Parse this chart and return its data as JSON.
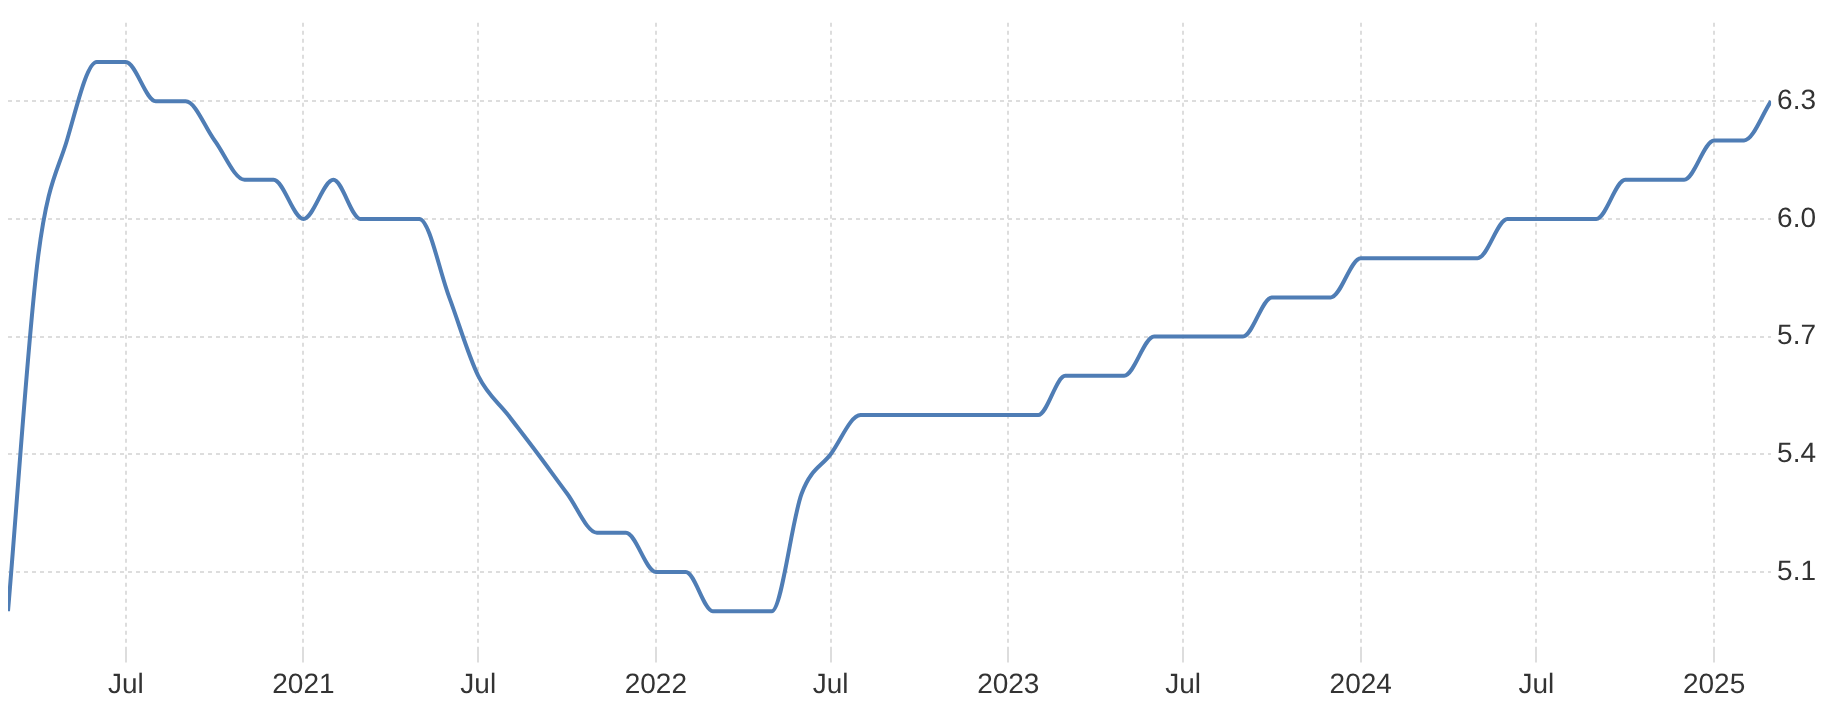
{
  "chart_data": {
    "type": "line",
    "x": [
      "2020-03",
      "2020-04",
      "2020-05",
      "2020-06",
      "2020-07",
      "2020-08",
      "2020-09",
      "2020-10",
      "2020-11",
      "2020-12",
      "2021-01",
      "2021-02",
      "2021-03",
      "2021-04",
      "2021-05",
      "2021-06",
      "2021-07",
      "2021-08",
      "2021-09",
      "2021-10",
      "2021-11",
      "2021-12",
      "2022-01",
      "2022-02",
      "2022-03",
      "2022-04",
      "2022-05",
      "2022-06",
      "2022-07",
      "2022-08",
      "2022-09",
      "2022-10",
      "2022-11",
      "2022-12",
      "2023-01",
      "2023-02",
      "2023-03",
      "2023-04",
      "2023-05",
      "2023-06",
      "2023-07",
      "2023-08",
      "2023-09",
      "2023-10",
      "2023-11",
      "2023-12",
      "2024-01",
      "2024-02",
      "2024-03",
      "2024-04",
      "2024-05",
      "2024-06",
      "2024-07",
      "2024-08",
      "2024-09",
      "2024-10",
      "2024-11",
      "2024-12",
      "2025-01",
      "2025-02",
      "2025-03"
    ],
    "series": [
      {
        "color": "#4f7db5",
        "values": [
          5.0,
          5.9,
          6.2,
          6.4,
          6.4,
          6.3,
          6.3,
          6.2,
          6.1,
          6.1,
          6.0,
          6.1,
          6.0,
          6.0,
          6.0,
          5.8,
          5.6,
          5.5,
          5.4,
          5.3,
          5.2,
          5.2,
          5.1,
          5.1,
          5.0,
          5.0,
          5.0,
          5.3,
          5.4,
          5.5,
          5.5,
          5.5,
          5.5,
          5.5,
          5.5,
          5.5,
          5.6,
          5.6,
          5.6,
          5.7,
          5.7,
          5.7,
          5.7,
          5.8,
          5.8,
          5.8,
          5.9,
          5.9,
          5.9,
          5.9,
          5.9,
          6.0,
          6.0,
          6.0,
          6.0,
          6.1,
          6.1,
          6.1,
          6.2,
          6.2,
          6.3
        ]
      }
    ],
    "xlim": [
      "2020-03",
      "2025-03"
    ],
    "xticks": [
      {
        "value": "2020-07",
        "label": "Jul"
      },
      {
        "value": "2021-01",
        "label": "2021"
      },
      {
        "value": "2021-07",
        "label": "Jul"
      },
      {
        "value": "2022-01",
        "label": "2022"
      },
      {
        "value": "2022-07",
        "label": "Jul"
      },
      {
        "value": "2023-01",
        "label": "2023"
      },
      {
        "value": "2023-07",
        "label": "Jul"
      },
      {
        "value": "2024-01",
        "label": "2024"
      },
      {
        "value": "2024-07",
        "label": "Jul"
      },
      {
        "value": "2025-01",
        "label": "2025"
      }
    ],
    "ylim": [
      4.9,
      6.5
    ],
    "yticks": [
      {
        "value": 5.1,
        "label": "5.1"
      },
      {
        "value": 5.4,
        "label": "5.4"
      },
      {
        "value": 5.7,
        "label": "5.7"
      },
      {
        "value": 6.0,
        "label": "6.0"
      },
      {
        "value": 6.3,
        "label": "6.3"
      }
    ],
    "grid": true,
    "legend": false,
    "marker": "none",
    "line_style": "solid"
  }
}
